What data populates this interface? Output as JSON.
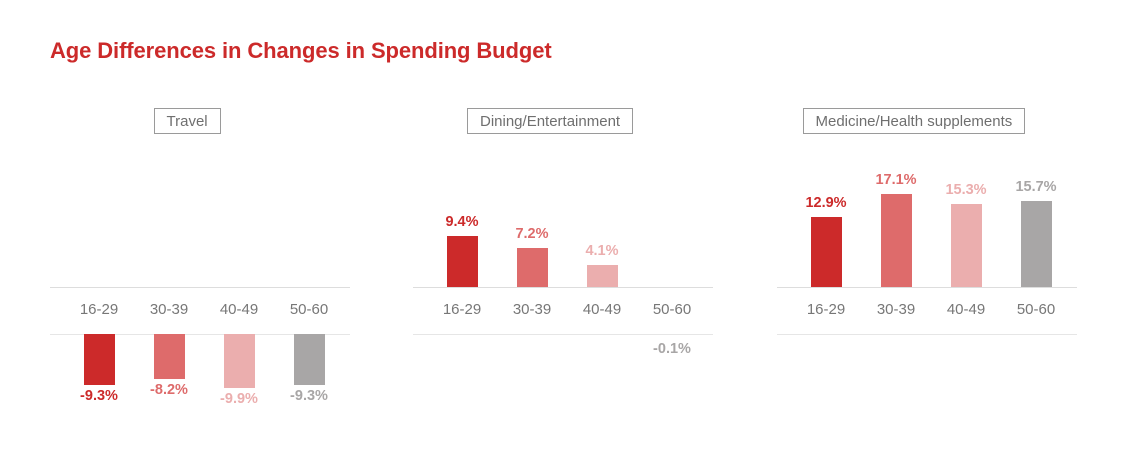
{
  "page": {
    "title": "Age Differences in Changes in Spending Budget"
  },
  "colors": {
    "title": "#cc2a2a",
    "age_groups": [
      "#cc2a2a",
      "#de6b6b",
      "#ebaeae",
      "#a8a6a6"
    ]
  },
  "chart_data": [
    {
      "type": "bar",
      "title": "Travel",
      "categories": [
        "16-29",
        "30-39",
        "40-49",
        "50-60"
      ],
      "values": [
        -9.3,
        -8.2,
        -9.9,
        -9.3
      ],
      "labels": [
        "-9.3%",
        "-8.2%",
        "-9.9%",
        "-9.3%"
      ],
      "unit": "%",
      "grid": false
    },
    {
      "type": "bar",
      "title": "Dining/Entertainment",
      "categories": [
        "16-29",
        "30-39",
        "40-49",
        "50-60"
      ],
      "values": [
        9.4,
        7.2,
        4.1,
        -0.1
      ],
      "labels": [
        "9.4%",
        "7.2%",
        "4.1%",
        "-0.1%"
      ],
      "unit": "%",
      "grid": false
    },
    {
      "type": "bar",
      "title": "Medicine/Health supplements",
      "categories": [
        "16-29",
        "30-39",
        "40-49",
        "50-60"
      ],
      "values": [
        12.9,
        17.1,
        15.3,
        15.7
      ],
      "labels": [
        "12.9%",
        "17.1%",
        "15.3%",
        "15.7%"
      ],
      "unit": "%",
      "grid": false
    }
  ]
}
